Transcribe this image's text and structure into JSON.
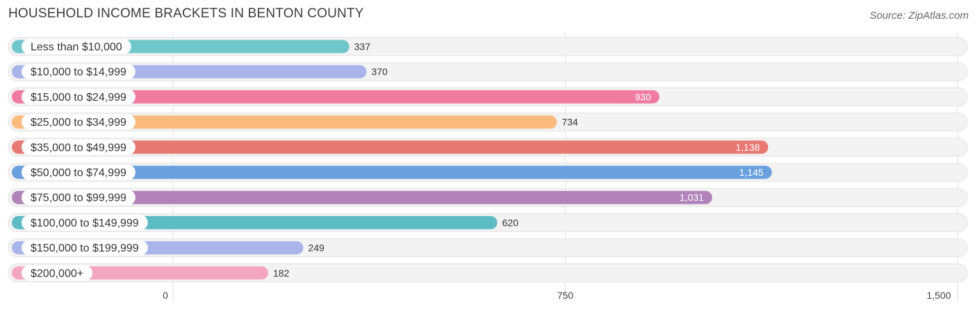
{
  "title": "HOUSEHOLD INCOME BRACKETS IN BENTON COUNTY",
  "source": "Source: ZipAtlas.com",
  "chart_data": {
    "type": "bar",
    "orientation": "horizontal",
    "title": "HOUSEHOLD INCOME BRACKETS IN BENTON COUNTY",
    "categories": [
      "Less than $10,000",
      "$10,000 to $14,999",
      "$15,000 to $24,999",
      "$25,000 to $34,999",
      "$35,000 to $49,999",
      "$50,000 to $74,999",
      "$75,000 to $99,999",
      "$100,000 to $149,999",
      "$150,000 to $199,999",
      "$200,000+"
    ],
    "values": [
      337,
      370,
      930,
      734,
      1138,
      1145,
      1031,
      620,
      249,
      182
    ],
    "value_labels": [
      "337",
      "370",
      "930",
      "734",
      "1,138",
      "1,145",
      "1,031",
      "620",
      "249",
      "182"
    ],
    "colors": [
      "#6fc7cc",
      "#a9b4ea",
      "#f07aa0",
      "#fbbb7d",
      "#e87872",
      "#6aa0dd",
      "#b183ba",
      "#5dbbc3",
      "#a9b4ea",
      "#f4a6c0"
    ],
    "xlim": [
      0,
      1500
    ],
    "xticks": [
      0,
      750,
      1500
    ],
    "xtick_labels": [
      "0",
      "750",
      "1,500"
    ],
    "grid": true
  }
}
